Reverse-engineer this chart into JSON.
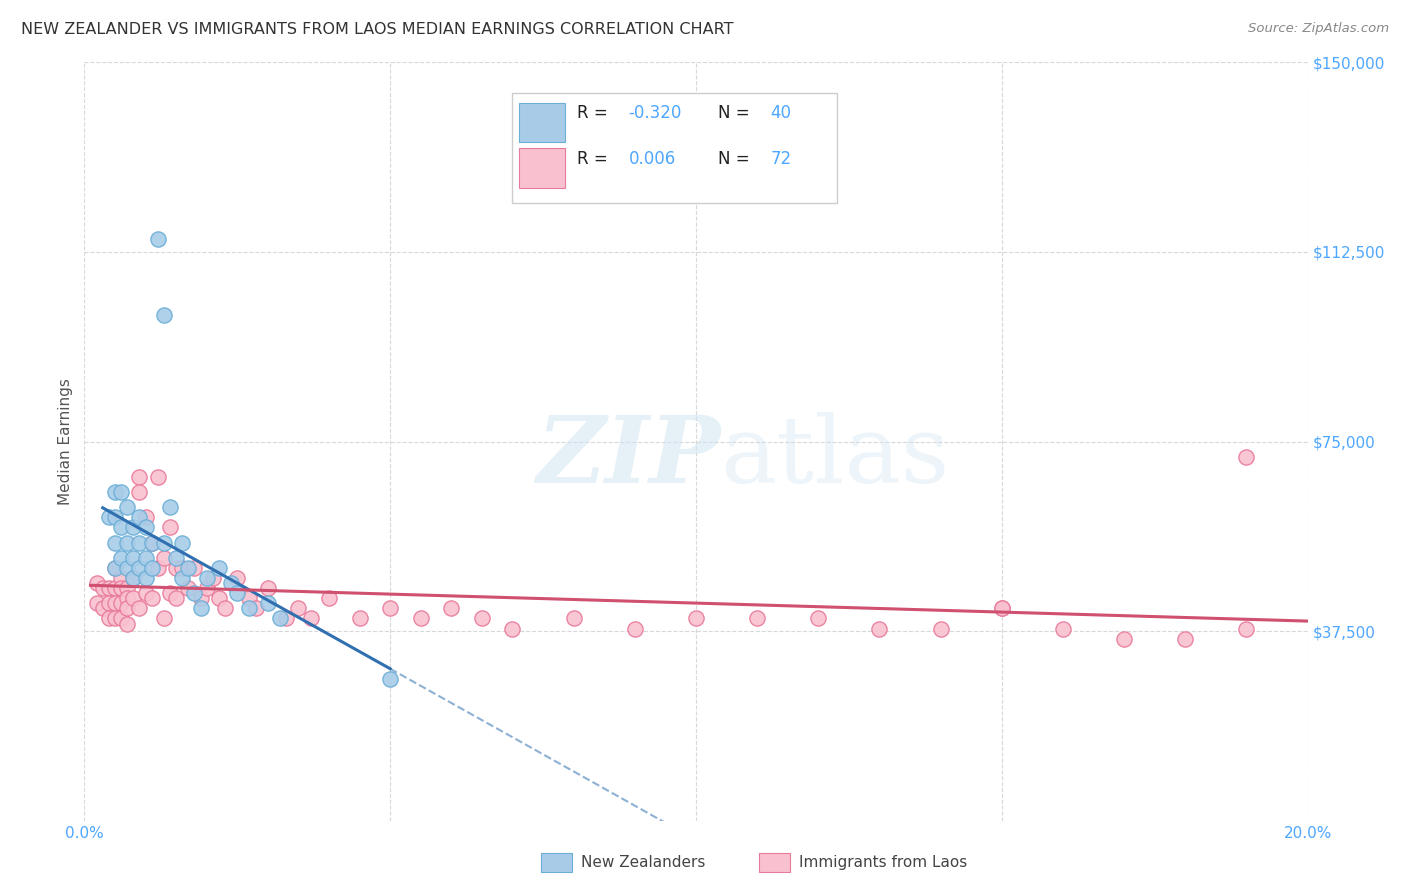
{
  "title": "NEW ZEALANDER VS IMMIGRANTS FROM LAOS MEDIAN EARNINGS CORRELATION CHART",
  "source": "Source: ZipAtlas.com",
  "ylabel": "Median Earnings",
  "x_min": 0.0,
  "x_max": 0.2,
  "y_min": 0,
  "y_max": 150000,
  "yticks": [
    0,
    37500,
    75000,
    112500,
    150000
  ],
  "ytick_labels": [
    "",
    "$37,500",
    "$75,000",
    "$112,500",
    "$150,000"
  ],
  "xticks": [
    0.0,
    0.05,
    0.1,
    0.15,
    0.2
  ],
  "xtick_labels": [
    "0.0%",
    "",
    "",
    "",
    "20.0%"
  ],
  "background_color": "#ffffff",
  "grid_color": "#d8d8d8",
  "watermark_zip": "ZIP",
  "watermark_atlas": "atlas",
  "color_nz": "#a8cce8",
  "color_nz_edge": "#6baed6",
  "color_laos": "#f9c0d0",
  "color_laos_edge": "#e87a9a",
  "color_nz_line": "#3070b0",
  "color_laos_line": "#d05070",
  "color_tick_label": "#4da6ff",
  "color_title": "#333333",
  "nz_x": [
    0.004,
    0.005,
    0.005,
    0.005,
    0.005,
    0.006,
    0.006,
    0.006,
    0.007,
    0.007,
    0.007,
    0.008,
    0.008,
    0.008,
    0.009,
    0.009,
    0.009,
    0.01,
    0.01,
    0.01,
    0.011,
    0.011,
    0.012,
    0.013,
    0.013,
    0.014,
    0.015,
    0.016,
    0.016,
    0.017,
    0.018,
    0.019,
    0.02,
    0.022,
    0.024,
    0.025,
    0.027,
    0.03,
    0.032,
    0.05
  ],
  "nz_y": [
    60000,
    65000,
    60000,
    55000,
    50000,
    65000,
    58000,
    52000,
    62000,
    55000,
    50000,
    58000,
    52000,
    48000,
    60000,
    55000,
    50000,
    58000,
    52000,
    48000,
    55000,
    50000,
    115000,
    100000,
    55000,
    62000,
    52000,
    55000,
    48000,
    50000,
    45000,
    42000,
    48000,
    50000,
    47000,
    45000,
    42000,
    43000,
    40000,
    28000
  ],
  "laos_x": [
    0.002,
    0.002,
    0.003,
    0.003,
    0.004,
    0.004,
    0.004,
    0.005,
    0.005,
    0.005,
    0.005,
    0.006,
    0.006,
    0.006,
    0.006,
    0.007,
    0.007,
    0.007,
    0.007,
    0.008,
    0.008,
    0.009,
    0.009,
    0.009,
    0.01,
    0.01,
    0.011,
    0.011,
    0.012,
    0.012,
    0.013,
    0.013,
    0.014,
    0.014,
    0.015,
    0.015,
    0.016,
    0.017,
    0.018,
    0.019,
    0.02,
    0.021,
    0.022,
    0.023,
    0.025,
    0.027,
    0.028,
    0.03,
    0.033,
    0.035,
    0.037,
    0.04,
    0.045,
    0.05,
    0.055,
    0.06,
    0.065,
    0.07,
    0.08,
    0.09,
    0.1,
    0.11,
    0.12,
    0.13,
    0.14,
    0.15,
    0.16,
    0.17,
    0.18,
    0.19,
    0.15,
    0.19
  ],
  "laos_y": [
    47000,
    43000,
    46000,
    42000,
    46000,
    43000,
    40000,
    50000,
    46000,
    43000,
    40000,
    48000,
    46000,
    43000,
    40000,
    46000,
    44000,
    42000,
    39000,
    48000,
    44000,
    68000,
    65000,
    42000,
    60000,
    45000,
    55000,
    44000,
    68000,
    50000,
    52000,
    40000,
    58000,
    45000,
    50000,
    44000,
    50000,
    46000,
    50000,
    44000,
    46000,
    48000,
    44000,
    42000,
    48000,
    44000,
    42000,
    46000,
    40000,
    42000,
    40000,
    44000,
    40000,
    42000,
    40000,
    42000,
    40000,
    38000,
    40000,
    38000,
    40000,
    40000,
    40000,
    38000,
    38000,
    42000,
    38000,
    36000,
    36000,
    38000,
    42000,
    72000
  ]
}
